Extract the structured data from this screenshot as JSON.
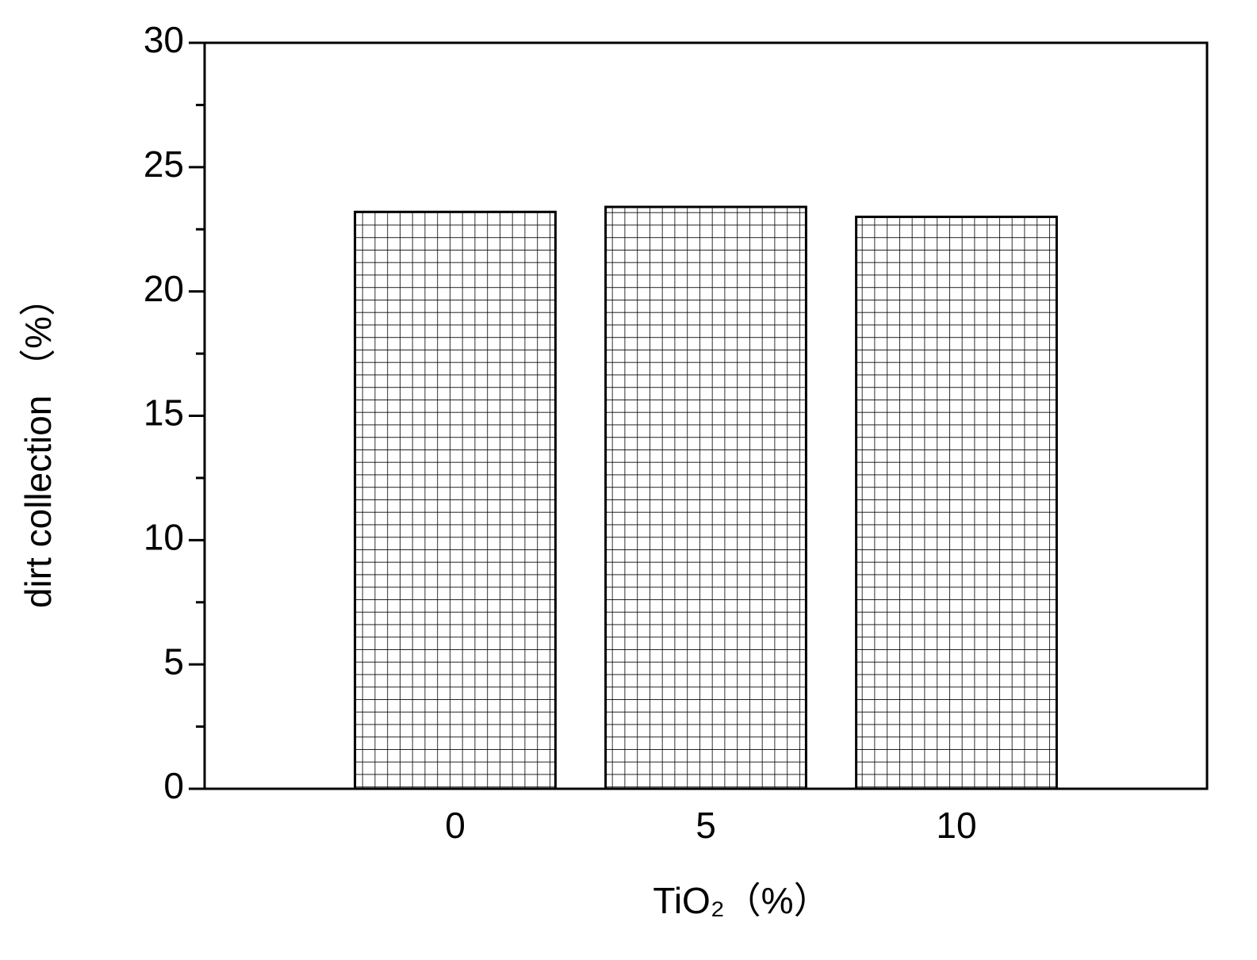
{
  "chart_data": {
    "type": "bar",
    "x_label": "TiO₂（%）",
    "y_label": "dirt collection （%）",
    "categories": [
      "0",
      "5",
      "10"
    ],
    "values": [
      23.2,
      23.4,
      23.0
    ],
    "color": "#000000",
    "hatch": "grid",
    "ylim": [
      0,
      30
    ],
    "yticks": [
      0,
      5,
      10,
      15,
      20,
      25,
      30
    ],
    "yminorticks": [
      2.5,
      7.5,
      12.5,
      17.5,
      22.5,
      27.5
    ],
    "grid": false
  }
}
